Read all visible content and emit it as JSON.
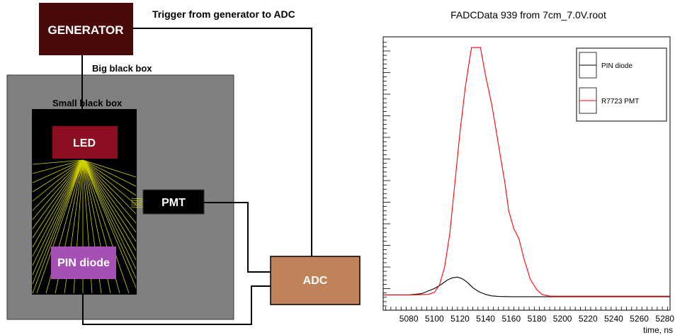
{
  "setup": {
    "generator_label": "GENERATOR",
    "trigger_label": "Trigger from generator to ADC",
    "big_box_label": "Big black box",
    "small_box_label": "Small black box",
    "led_label": "LED",
    "pmt_label": "PMT",
    "pin_diode_label": "PIN diode",
    "adc_label": "ADC",
    "colors": {
      "generator": "#4a0a0a",
      "big_box": "#808080",
      "small_box": "#000000",
      "led": "#8b0e22",
      "pmt": "#000000",
      "pin_diode": "#a650b6",
      "adc": "#c0825b",
      "light_rays": "#e8e800"
    }
  },
  "chart_data": {
    "type": "line",
    "title": "FADCData 939 from 7cm_7.0V.root",
    "xlabel": "time, ns",
    "ylabel": "",
    "xlim": [
      5060,
      5284
    ],
    "ylim": [
      0,
      1
    ],
    "x_ticks": [
      5080,
      5100,
      5120,
      5140,
      5160,
      5180,
      5200,
      5220,
      5240,
      5260,
      5280
    ],
    "x_tick_labels": [
      "5080",
      "5100",
      "5120",
      "5140",
      "5160",
      "5180",
      "5200",
      "5220",
      "5240",
      "5260",
      "5280"
    ],
    "legend_position": "top-right",
    "series": [
      {
        "name": "PIN diode",
        "color": "#000000",
        "x": [
          5060,
          5080,
          5090,
          5100,
          5105,
          5110,
          5114,
          5118,
          5122,
          5126,
          5130,
          5135,
          5140,
          5145,
          5150,
          5160,
          5180,
          5200,
          5240,
          5284
        ],
        "y": [
          0.01,
          0.01,
          0.015,
          0.035,
          0.05,
          0.068,
          0.077,
          0.08,
          0.073,
          0.058,
          0.038,
          0.022,
          0.012,
          0.006,
          0.004,
          0.003,
          0.003,
          0.003,
          0.003,
          0.003
        ]
      },
      {
        "name": "R7723 PMT",
        "color": "#ff0000",
        "x": [
          5060,
          5080,
          5095,
          5100,
          5104,
          5108,
          5112,
          5116,
          5120,
          5124,
          5128,
          5129,
          5130,
          5136,
          5137,
          5140,
          5145,
          5150,
          5155,
          5158,
          5162,
          5166,
          5170,
          5175,
          5180,
          5184,
          5190,
          5200,
          5240,
          5284
        ],
        "y": [
          0.01,
          0.01,
          0.012,
          0.02,
          0.05,
          0.12,
          0.25,
          0.45,
          0.65,
          0.82,
          0.95,
          0.98,
          0.98,
          0.98,
          0.95,
          0.87,
          0.75,
          0.6,
          0.45,
          0.34,
          0.27,
          0.23,
          0.15,
          0.07,
          0.03,
          0.012,
          0.005,
          0.005,
          0.005,
          0.005
        ]
      }
    ]
  }
}
